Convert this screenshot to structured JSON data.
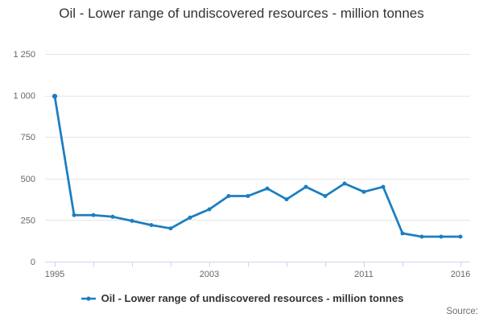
{
  "title": "Oil - Lower range of undiscovered resources - million tonnes",
  "legend": {
    "label": "Oil - Lower range of undiscovered resources - million tonnes"
  },
  "source_label": "Source:",
  "colors": {
    "line": "#1b7ec2",
    "title_text": "#333333",
    "legend_text": "#333333",
    "axis_label": "#666666",
    "gridline": "#e6e6e6",
    "axis_line": "#ccd6eb",
    "background": "#ffffff"
  },
  "chart_data": {
    "type": "line",
    "title": "Oil - Lower range of undiscovered resources - million tonnes",
    "xlabel": "",
    "ylabel": "",
    "x": [
      1995,
      1996,
      1997,
      1998,
      1999,
      2000,
      2001,
      2002,
      2003,
      2004,
      2005,
      2006,
      2007,
      2008,
      2009,
      2010,
      2011,
      2012,
      2013,
      2014,
      2015,
      2016
    ],
    "series": [
      {
        "name": "Oil - Lower range of undiscovered resources - million tonnes",
        "values": [
          995,
          280,
          280,
          270,
          245,
          220,
          200,
          265,
          315,
          395,
          395,
          440,
          375,
          450,
          395,
          470,
          420,
          450,
          170,
          150,
          150,
          150
        ]
      }
    ],
    "xlim": [
      1994.5,
      2016.5
    ],
    "ylim": [
      0,
      1250
    ],
    "y_ticks": [
      0,
      250,
      500,
      750,
      1000,
      1250
    ],
    "y_tick_labels": [
      "0",
      "250",
      "500",
      "750",
      "1 000",
      "1 250"
    ],
    "x_ticks": [
      1995,
      1997,
      1999,
      2001,
      2003,
      2005,
      2007,
      2009,
      2011,
      2013,
      2016
    ],
    "x_labeled_ticks": [
      1995,
      2003,
      2011,
      2016
    ],
    "grid": "horizontal",
    "legend_position": "bottom-center",
    "marker": "circle"
  }
}
